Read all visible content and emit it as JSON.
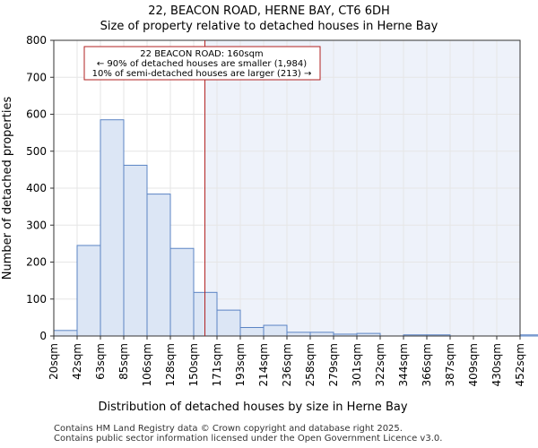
{
  "chart_data": {
    "type": "bar",
    "title": "22, BEACON ROAD, HERNE BAY, CT6 6DH",
    "subtitle": "Size of property relative to detached houses in Herne Bay",
    "xlabel": "Distribution of detached houses by size in Herne Bay",
    "ylabel": "Number of detached properties",
    "ylim": [
      0,
      800
    ],
    "yticks": [
      0,
      100,
      200,
      300,
      400,
      500,
      600,
      700,
      800
    ],
    "categories": [
      "20sqm",
      "42sqm",
      "63sqm",
      "85sqm",
      "106sqm",
      "128sqm",
      "150sqm",
      "171sqm",
      "193sqm",
      "214sqm",
      "236sqm",
      "258sqm",
      "279sqm",
      "301sqm",
      "322sqm",
      "344sqm",
      "366sqm",
      "387sqm",
      "409sqm",
      "430sqm",
      "452sqm"
    ],
    "values": [
      15,
      245,
      585,
      462,
      384,
      237,
      118,
      70,
      23,
      29,
      10,
      10,
      5,
      7,
      0,
      3,
      3,
      0,
      0,
      0,
      3
    ],
    "marker": {
      "value_sqm": 160,
      "color": "#b22222"
    },
    "bar_fill": "#dce6f5",
    "bar_edge": "#5b84c4",
    "shade_fill": "#eef2fa",
    "annotation": {
      "line1": "22 BEACON ROAD: 160sqm",
      "line2": "← 90% of detached houses are smaller (1,984)",
      "line3": "10% of semi-detached houses are larger (213) →"
    }
  },
  "footer": {
    "line1": "Contains HM Land Registry data © Crown copyright and database right 2025.",
    "line2": "Contains public sector information licensed under the Open Government Licence v3.0."
  }
}
